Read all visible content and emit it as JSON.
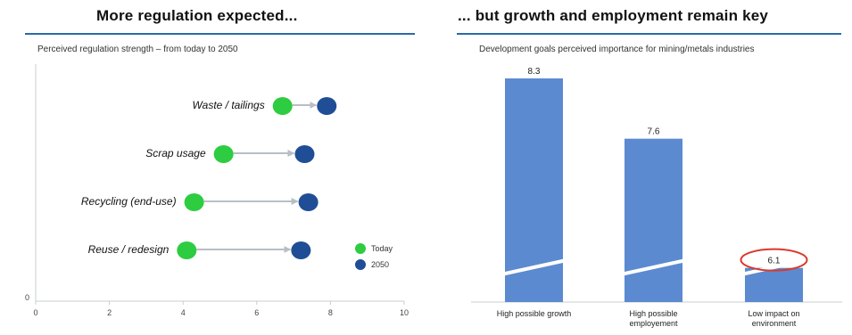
{
  "left": {
    "title": "More regulation expected...",
    "subtitle": "Perceived regulation strength – from today to 2050"
  },
  "right": {
    "title": "... but growth and employment remain key",
    "subtitle": "Development goals perceived importance for mining/metals industries"
  },
  "colors": {
    "today": "#2ecc40",
    "y2050": "#1f4e96",
    "bar": "#5b8ad0",
    "rule": "#2b6aa6",
    "highlight_circle": "#d93a2b",
    "arrow": "#b8bec6"
  },
  "chart_data": [
    {
      "type": "scatter",
      "xlim": [
        0,
        10
      ],
      "x_ticks": [
        "0",
        "2",
        "4",
        "6",
        "8",
        "10"
      ],
      "y_tick_label": "0",
      "categories": [
        "Waste / tailings",
        "Scrap usage",
        "Recycling (end-use)",
        "Reuse / redesign"
      ],
      "series": [
        {
          "name": "Today",
          "values": [
            6.7,
            5.1,
            4.3,
            4.1
          ]
        },
        {
          "name": "2050",
          "values": [
            7.9,
            7.3,
            7.4,
            7.2
          ]
        }
      ],
      "legend": {
        "position": "bottom-right"
      },
      "arrows": true,
      "grid": false
    },
    {
      "type": "bar",
      "categories": [
        [
          "High possible growth"
        ],
        [
          "High possible",
          "employement"
        ],
        [
          "Low impact on",
          "environment"
        ]
      ],
      "values": [
        8.3,
        7.6,
        6.1
      ],
      "value_labels": [
        "8.3",
        "7.6",
        "6.1"
      ],
      "axis_break": true,
      "highlighted": "6.1",
      "grid": false
    }
  ]
}
